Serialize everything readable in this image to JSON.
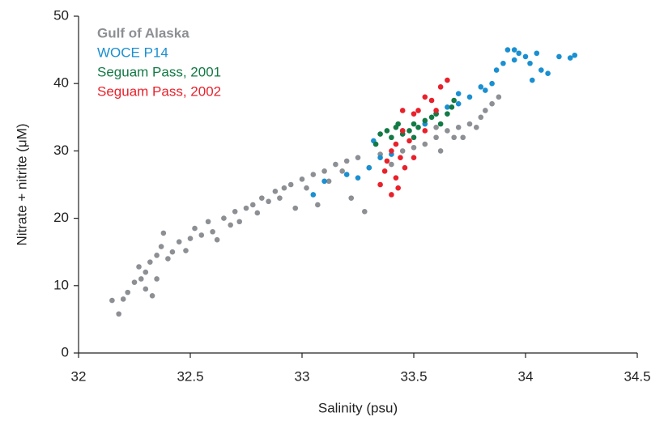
{
  "chart_data": {
    "type": "scatter",
    "xlabel": "Salinity (psu)",
    "ylabel": "Nitrate + nitrite (μM)",
    "xlim": [
      32,
      34.5
    ],
    "xticks": [
      32,
      32.5,
      33,
      33.5,
      34,
      34.5
    ],
    "ylim": [
      0,
      50
    ],
    "yticks": [
      0,
      10,
      20,
      30,
      40,
      50
    ],
    "legend": "upper left",
    "series": [
      {
        "name": "Gulf of Alaska",
        "color": "#8c8f93",
        "x": [
          32.15,
          32.18,
          32.2,
          32.22,
          32.25,
          32.27,
          32.28,
          32.3,
          32.3,
          32.32,
          32.33,
          32.35,
          32.35,
          32.37,
          32.38,
          32.4,
          32.42,
          32.45,
          32.48,
          32.5,
          32.52,
          32.55,
          32.58,
          32.6,
          32.62,
          32.65,
          32.68,
          32.7,
          32.72,
          32.75,
          32.78,
          32.8,
          32.82,
          32.85,
          32.88,
          32.9,
          32.92,
          32.95,
          32.97,
          33.0,
          33.02,
          33.05,
          33.07,
          33.1,
          33.12,
          33.15,
          33.18,
          33.2,
          33.22,
          33.25,
          33.28,
          33.3,
          33.35,
          33.4,
          33.45,
          33.5,
          33.55,
          33.6,
          33.62,
          33.65,
          33.68,
          33.7,
          33.72,
          33.75,
          33.78,
          33.8,
          33.82,
          33.85,
          33.88,
          33.6
        ],
        "y": [
          7.8,
          5.8,
          8,
          9,
          10.5,
          12.8,
          11,
          9.5,
          12,
          13.5,
          8.5,
          11,
          14.5,
          15.8,
          17.8,
          14,
          15,
          16.5,
          15.2,
          17,
          18.5,
          17.5,
          19.5,
          18,
          16.8,
          20,
          19,
          21,
          19.5,
          21.5,
          22,
          20.8,
          23,
          22.5,
          24,
          23,
          24.5,
          25,
          21.5,
          25.8,
          24.5,
          26.5,
          22,
          27,
          25.5,
          28,
          27,
          28.5,
          23,
          29,
          21,
          27.5,
          29.5,
          28,
          30,
          30.5,
          31,
          32,
          30,
          33,
          32,
          33.5,
          32,
          34,
          33.5,
          35,
          36,
          37,
          38,
          33.5
        ]
      },
      {
        "name": "WOCE P14",
        "color": "#1a8fd1",
        "x": [
          33.05,
          33.1,
          33.2,
          33.25,
          33.3,
          33.32,
          33.35,
          33.45,
          33.4,
          33.55,
          33.6,
          33.65,
          33.7,
          33.75,
          33.8,
          33.82,
          33.85,
          33.87,
          33.9,
          33.92,
          33.95,
          33.97,
          34.0,
          34.02,
          34.05,
          34.07,
          34.1,
          34.15,
          34.2,
          34.22,
          33.7,
          33.95,
          34.03
        ],
        "y": [
          23.5,
          25.5,
          26.5,
          26,
          27.5,
          31.5,
          29,
          33,
          29.5,
          34,
          35.5,
          36.5,
          37,
          38,
          39.5,
          39,
          40,
          42,
          43,
          45,
          45,
          44.5,
          44,
          43,
          44.5,
          42,
          41.5,
          44,
          43.8,
          44.2,
          38.5,
          43.5,
          40.5
        ]
      },
      {
        "name": "Seguam Pass, 2001",
        "color": "#137a45",
        "x": [
          33.33,
          33.35,
          33.38,
          33.4,
          33.42,
          33.45,
          33.48,
          33.5,
          33.52,
          33.55,
          33.58,
          33.6,
          33.62,
          33.65,
          33.67,
          33.68,
          33.5,
          33.43
        ],
        "y": [
          31,
          32.5,
          33,
          32,
          33.5,
          32.5,
          33,
          34,
          33.5,
          34.5,
          35,
          35.5,
          34,
          35.5,
          36.5,
          37.5,
          32,
          34
        ]
      },
      {
        "name": "Seguam Pass, 2002",
        "color": "#e8212b",
        "x": [
          33.35,
          33.37,
          33.38,
          33.4,
          33.4,
          33.42,
          33.42,
          33.44,
          33.45,
          33.46,
          33.48,
          33.5,
          33.5,
          33.52,
          33.55,
          33.55,
          33.58,
          33.6,
          33.62,
          33.65,
          33.45,
          33.43
        ],
        "y": [
          25,
          27,
          28.5,
          30,
          23.5,
          26,
          31,
          29,
          33,
          27.5,
          31.5,
          35.5,
          29,
          36,
          33,
          38,
          37.5,
          36,
          39.5,
          40.5,
          36,
          24.5
        ]
      }
    ]
  }
}
